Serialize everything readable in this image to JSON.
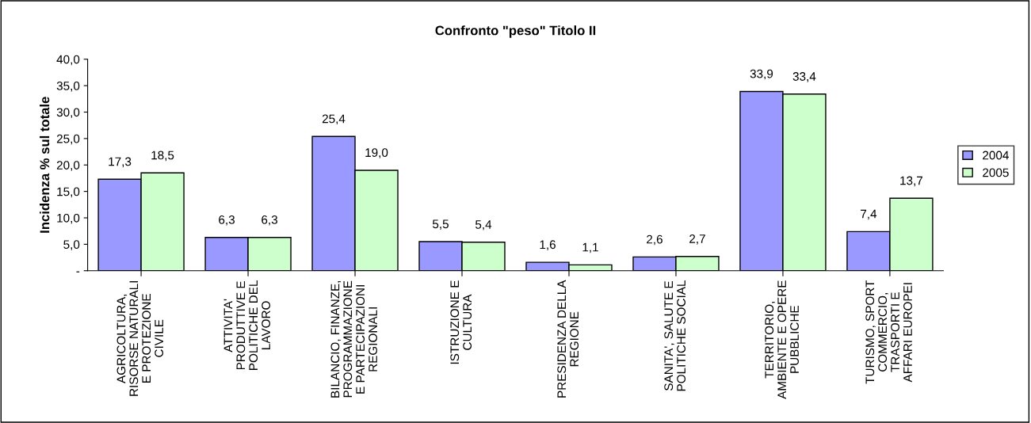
{
  "chart_data": {
    "type": "bar",
    "title": "Confronto \"peso\" Titolo II",
    "ylabel": "Incidenza % sul totale",
    "categories": [
      "AGRICOLTURA,\nRISORSE NATURALI\nE PROTEZIONE\nCIVILE",
      "ATTIVITA'\nPRODUTTIVE E\nPOLITICHE DEL\nLAVORO",
      "BILANCIO, FINANZE,\nPROGRAMMAZIONE\nE PARTECIPAZIONI\nREGIONALI",
      "ISTRUZIONE E\nCULTURA",
      "PRESIDENZA DELLA\nREGIONE",
      "SANITA', SALUTE E\nPOLITICHE SOCIAL",
      "TERRITORIO,\nAMBIENTE E OPERE\nPUBBLICHE",
      "TURISMO, SPORT\nCOMMERCIO,\nTRASPORTI E\nAFFARI EUROPEI"
    ],
    "series": [
      {
        "name": "2004",
        "color": "#9999ff",
        "values": [
          17.3,
          6.3,
          25.4,
          5.5,
          1.6,
          2.6,
          33.9,
          7.4
        ],
        "value_labels": [
          "17,3",
          "6,3",
          "25,4",
          "5,5",
          "1,6",
          "2,6",
          "33,9",
          "7,4"
        ]
      },
      {
        "name": "2005",
        "color": "#ccffcc",
        "values": [
          18.5,
          6.3,
          19.0,
          5.4,
          1.1,
          2.7,
          33.4,
          13.7
        ],
        "value_labels": [
          "18,5",
          "6,3",
          "19,0",
          "5,4",
          "1,1",
          "2,7",
          "33,4",
          "13,7"
        ]
      }
    ],
    "ylim": [
      0,
      40
    ],
    "yticks": [
      {
        "value": 0,
        "label": "-"
      },
      {
        "value": 5,
        "label": "5,0"
      },
      {
        "value": 10,
        "label": "10,0"
      },
      {
        "value": 15,
        "label": "15,0"
      },
      {
        "value": 20,
        "label": "20,0"
      },
      {
        "value": 25,
        "label": "25,0"
      },
      {
        "value": 30,
        "label": "30,0"
      },
      {
        "value": 35,
        "label": "35,0"
      },
      {
        "value": 40,
        "label": "40,0"
      }
    ],
    "grid": false,
    "legend": "right"
  }
}
